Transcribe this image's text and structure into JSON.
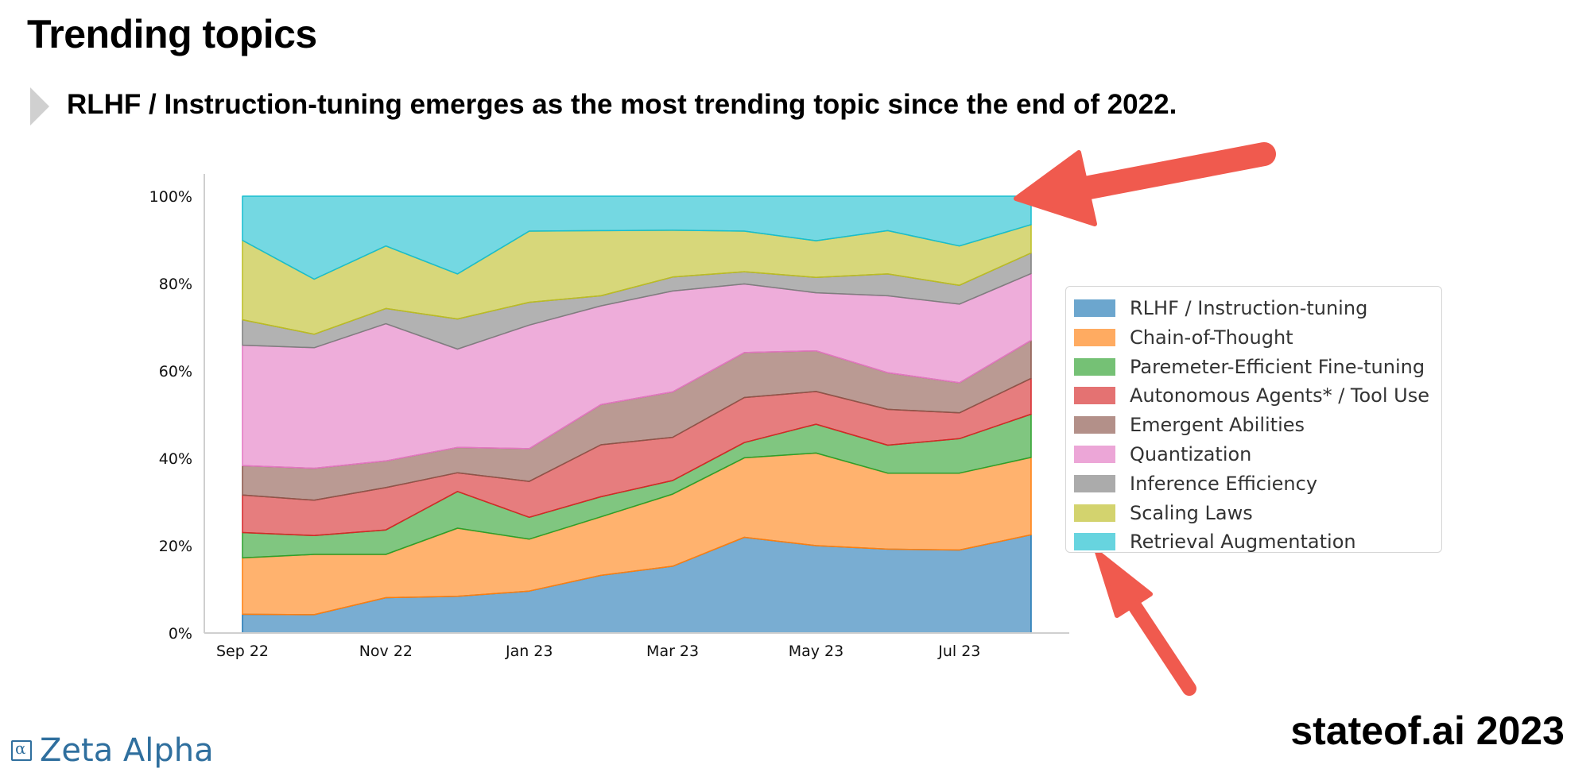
{
  "header": {
    "title": "Trending topics",
    "subtitle": "RLHF / Instruction-tuning emerges as the most trending topic since the end of 2022."
  },
  "footer": {
    "brand_logo": "Zeta Alpha",
    "brand_logo_icon": "zeta-alpha-logo-icon",
    "report": "stateof.ai 2023"
  },
  "colors": {
    "arrow": "#f05a4e"
  },
  "chart_data": {
    "type": "area",
    "stacked": true,
    "normalized_percent": true,
    "title": "",
    "xlabel": "",
    "ylabel": "",
    "ylim": [
      0,
      100
    ],
    "x": [
      "Sep 22",
      "Oct 22",
      "Nov 22",
      "Dec 22",
      "Jan 23",
      "Feb 23",
      "Mar 23",
      "Apr 23",
      "May 23",
      "Jun 23",
      "Jul 23",
      "Aug 23"
    ],
    "xticks": [
      "Sep 22",
      "Nov 22",
      "Jan 23",
      "Mar 23",
      "May 23",
      "Jul 23"
    ],
    "yticks": [
      "0%",
      "20%",
      "40%",
      "60%",
      "80%",
      "100%"
    ],
    "legend_position": "right",
    "series": [
      {
        "name": "RLHF / Instruction-tuning",
        "color": "#1f77b4",
        "values": [
          4.3,
          4.2,
          8.1,
          8.4,
          9.6,
          13.2,
          15.3,
          21.9,
          20.0,
          19.2,
          19.0,
          22.5
        ]
      },
      {
        "name": "Chain-of-Thought",
        "color": "#ff7f0e",
        "values": [
          12.9,
          13.8,
          9.9,
          15.6,
          11.9,
          13.4,
          16.5,
          18.2,
          21.2,
          17.4,
          17.6,
          17.7
        ]
      },
      {
        "name": "Paremeter-Efficient Fine-tuning",
        "color": "#2ca02c",
        "values": [
          5.8,
          4.3,
          5.6,
          8.4,
          5.0,
          4.6,
          3.1,
          3.5,
          6.6,
          6.4,
          7.9,
          9.9
        ]
      },
      {
        "name": "Autonomous Agents* / Tool Use",
        "color": "#d62728",
        "values": [
          8.6,
          8.1,
          9.7,
          4.3,
          8.2,
          11.9,
          9.9,
          10.3,
          7.5,
          8.2,
          5.9,
          8.2
        ]
      },
      {
        "name": "Emergent Abilities",
        "color": "#8c564b",
        "values": [
          6.7,
          7.3,
          6.1,
          5.8,
          7.5,
          9.2,
          10.4,
          10.3,
          9.3,
          8.4,
          6.9,
          8.7
        ]
      },
      {
        "name": "Quantization",
        "color": "#e377c2",
        "values": [
          27.6,
          27.6,
          31.4,
          22.5,
          28.3,
          22.6,
          23.1,
          15.7,
          13.3,
          17.6,
          18.0,
          15.3
        ]
      },
      {
        "name": "Inference Efficiency",
        "color": "#7f7f7f",
        "values": [
          5.8,
          3.1,
          3.5,
          6.9,
          5.2,
          2.3,
          3.2,
          2.8,
          3.5,
          5.0,
          4.3,
          4.7
        ]
      },
      {
        "name": "Scaling Laws",
        "color": "#bcbd22",
        "values": [
          18.2,
          12.6,
          14.3,
          10.3,
          16.3,
          14.9,
          10.7,
          9.3,
          8.4,
          9.9,
          9.0,
          6.5
        ]
      },
      {
        "name": "Retrieval Augmentation",
        "color": "#17becf",
        "values": [
          10.1,
          19.0,
          11.4,
          17.8,
          8.0,
          7.9,
          7.8,
          8.0,
          10.2,
          7.9,
          11.4,
          6.5
        ]
      }
    ]
  }
}
